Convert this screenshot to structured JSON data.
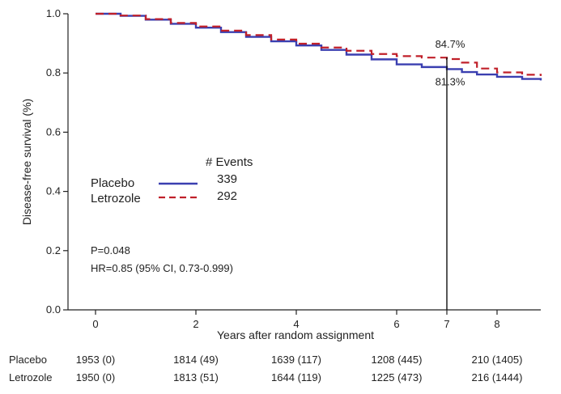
{
  "chart_data": {
    "type": "line",
    "title": "",
    "xlabel": "Years after random assignment",
    "ylabel": "Disease-free survival (%)",
    "xlim": [
      -0.4,
      8.9
    ],
    "ylim": [
      0.0,
      1.0
    ],
    "x_ticks": [
      0,
      2,
      4,
      6,
      7,
      8
    ],
    "x_tick_labels": [
      "0",
      "2",
      "4",
      "6",
      "7",
      "8"
    ],
    "y_ticks": [
      0.0,
      0.2,
      0.4,
      0.6,
      0.8,
      1.0
    ],
    "y_tick_labels": [
      "0.0",
      "0.2",
      "0.4",
      "0.6",
      "0.8",
      "1.0"
    ],
    "series": [
      {
        "name": "Placebo",
        "color": "#3a3fb0",
        "dash": "solid",
        "events": "339",
        "x": [
          0,
          0.5,
          1.0,
          1.5,
          2.0,
          2.5,
          3.0,
          3.5,
          4.0,
          4.5,
          5.0,
          5.5,
          6.0,
          6.5,
          7.0,
          7.3,
          7.6,
          8.0,
          8.5,
          8.9
        ],
        "y": [
          1.0,
          0.993,
          0.98,
          0.966,
          0.953,
          0.938,
          0.922,
          0.907,
          0.893,
          0.878,
          0.862,
          0.846,
          0.829,
          0.82,
          0.813,
          0.803,
          0.795,
          0.787,
          0.78,
          0.775
        ]
      },
      {
        "name": "Letrozole",
        "color": "#c0202a",
        "dash": "dashed",
        "events": "292",
        "x": [
          0,
          0.5,
          1.0,
          1.5,
          2.0,
          2.5,
          3.0,
          3.5,
          4.0,
          4.5,
          5.0,
          5.5,
          6.0,
          6.5,
          7.0,
          7.3,
          7.6,
          8.0,
          8.5,
          8.9
        ],
        "y": [
          1.0,
          0.994,
          0.982,
          0.969,
          0.957,
          0.943,
          0.928,
          0.913,
          0.899,
          0.886,
          0.875,
          0.864,
          0.857,
          0.852,
          0.847,
          0.835,
          0.815,
          0.802,
          0.794,
          0.79
        ]
      }
    ],
    "legend": {
      "position": "middle-left",
      "header": "# Events"
    },
    "annotations": {
      "marker_year": 7,
      "letrozole_label": "84.7%",
      "placebo_label": "81.3%",
      "p_value": "P=0.048",
      "hr": "HR=0.85 (95% CI, 0.73-0.999)"
    },
    "risk_table": {
      "rows": [
        {
          "label": "Placebo",
          "values": [
            "1953 (0)",
            "1814 (49)",
            "1639 (117)",
            "1208 (445)",
            "210 (1405)"
          ]
        },
        {
          "label": "Letrozole",
          "values": [
            "1950 (0)",
            "1813 (51)",
            "1644 (119)",
            "1225 (473)",
            "216 (1444)"
          ]
        }
      ]
    }
  }
}
